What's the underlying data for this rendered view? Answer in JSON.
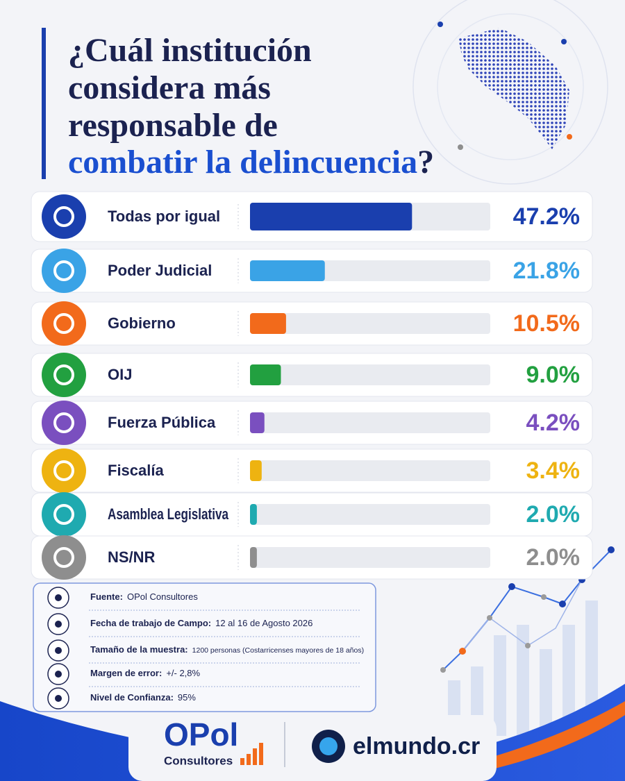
{
  "chart_data": {
    "type": "bar",
    "orientation": "horizontal",
    "title_lines": [
      "¿Cuál institución",
      "considera más",
      "responsable de"
    ],
    "title_highlight": "combatir la delincuencia",
    "title_end": "?",
    "categories": [
      "Todas por igual",
      "Poder Judicial",
      "Gobierno",
      "OIJ",
      "Fuerza Pública",
      "Fiscalía",
      "Asamblea Legislativa",
      "NS/NR"
    ],
    "values": [
      47.2,
      21.8,
      10.5,
      9.0,
      4.2,
      3.4,
      2.0,
      2.0
    ],
    "value_labels": [
      "47.2%",
      "21.8%",
      "10.5%",
      "9.0%",
      "4.2%",
      "3.4%",
      "2.0%",
      "2.0%"
    ],
    "colors": [
      "#1a3fae",
      "#3aa3e6",
      "#f26a1b",
      "#22a040",
      "#7a4fbf",
      "#eeb311",
      "#1faab0",
      "#8e8e8e"
    ],
    "xlim": [
      0,
      70
    ]
  },
  "info": [
    {
      "label": "Fuente:",
      "value": "OPol Consultores"
    },
    {
      "label": "Fecha de trabajo de Campo:",
      "value": "12 al 16 de Agosto 2026"
    },
    {
      "label": "Tamaño de la muestra:",
      "value": "1200 personas (Costarricenses mayores de 18 años)"
    },
    {
      "label": "Margen de error:",
      "value": "+/- 2,8%"
    },
    {
      "label": "Nivel de Confianza:",
      "value": "95%"
    }
  ],
  "logos": {
    "opol": "OPol",
    "opol_sub": "Consultores",
    "elmundo": "elmundo.cr"
  }
}
